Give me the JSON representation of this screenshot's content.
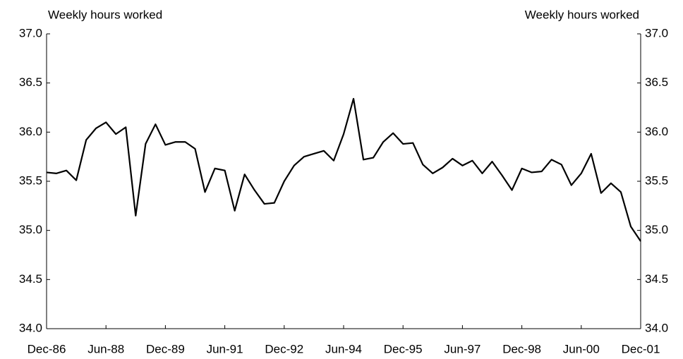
{
  "chart_data": {
    "type": "line",
    "y_label": "Weekly hours worked",
    "y2_label": "Weekly hours worked",
    "categories": [
      "Dec-86",
      null,
      null,
      null,
      null,
      null,
      "Jun-88",
      null,
      null,
      null,
      null,
      null,
      "Dec-89",
      null,
      null,
      null,
      null,
      null,
      "Jun-91",
      null,
      null,
      null,
      null,
      null,
      "Dec-92",
      null,
      null,
      null,
      null,
      null,
      "Jun-94",
      null,
      null,
      null,
      null,
      null,
      "Dec-95",
      null,
      null,
      null,
      null,
      null,
      "Jun-97",
      null,
      null,
      null,
      null,
      null,
      "Dec-98",
      null,
      null,
      null,
      null,
      null,
      "Jun-00",
      null,
      null,
      null,
      null,
      null,
      "Dec-01"
    ],
    "series": [
      {
        "color": "#000000",
        "values": [
          35.59,
          35.58,
          35.61,
          35.51,
          35.92,
          36.04,
          36.1,
          35.98,
          36.05,
          35.15,
          35.88,
          36.08,
          35.87,
          35.9,
          35.9,
          35.83,
          35.39,
          35.63,
          35.61,
          35.2,
          35.57,
          35.41,
          35.27,
          35.28,
          35.5,
          35.66,
          35.75,
          35.78,
          35.81,
          35.71,
          35.98,
          36.34,
          35.72,
          35.74,
          35.9,
          35.99,
          35.88,
          35.89,
          35.67,
          35.58,
          35.64,
          35.73,
          35.66,
          35.71,
          35.58,
          35.7,
          35.56,
          35.41,
          35.63,
          35.59,
          35.6,
          35.72,
          35.67,
          35.46,
          35.58,
          35.78,
          35.38,
          35.48,
          35.39,
          35.04,
          34.89
        ]
      }
    ],
    "ylim": [
      34.0,
      37.0
    ],
    "yticks": [
      {
        "value": 34.0,
        "label": "34.0"
      },
      {
        "value": 34.5,
        "label": "34.5"
      },
      {
        "value": 35.0,
        "label": "35.0"
      },
      {
        "value": 35.5,
        "label": "35.5"
      },
      {
        "value": 36.0,
        "label": "36.0"
      },
      {
        "value": 36.5,
        "label": "36.5"
      },
      {
        "value": 37.0,
        "label": "37.0"
      }
    ],
    "y2lim": [
      34.0,
      37.0
    ],
    "y2ticks": [
      {
        "value": 34.0,
        "label": "34.0"
      },
      {
        "value": 34.5,
        "label": "34.5"
      },
      {
        "value": 35.0,
        "label": "35.0"
      },
      {
        "value": 35.5,
        "label": "35.5"
      },
      {
        "value": 36.0,
        "label": "36.0"
      },
      {
        "value": 36.5,
        "label": "36.5"
      },
      {
        "value": 37.0,
        "label": "37.0"
      }
    ]
  }
}
